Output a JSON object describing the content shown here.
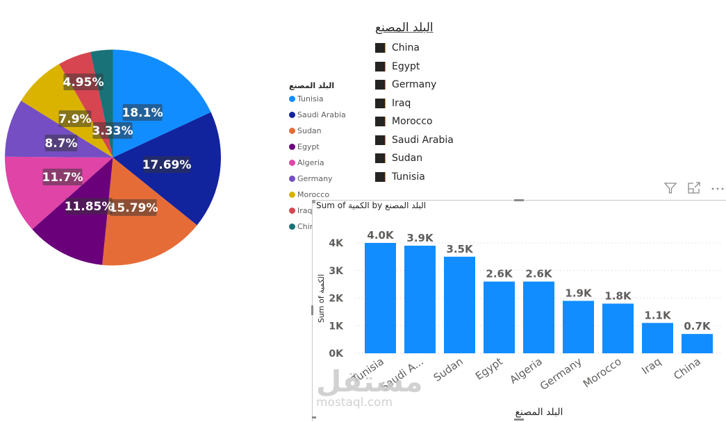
{
  "chart_data": [
    {
      "type": "pie",
      "title": "",
      "legend_title": "البلد المصنع",
      "legend_position": "right",
      "categories": [
        "Tunisia",
        "Saudi Arabia",
        "Sudan",
        "Egypt",
        "Algeria",
        "Germany",
        "Morocco",
        "Iraq",
        "China"
      ],
      "values": [
        18.1,
        17.69,
        15.79,
        11.85,
        11.7,
        8.7,
        7.9,
        4.95,
        3.33
      ],
      "labels": [
        "18.1%",
        "17.69%",
        "15.79%",
        "11.85%",
        "11.7%",
        "8.7%",
        "7.9%",
        "4.95%",
        "3.33%"
      ],
      "colors": [
        "#118DFF",
        "#12239E",
        "#E66C37",
        "#6B007B",
        "#E044A7",
        "#744EC2",
        "#D9B300",
        "#D64550",
        "#197278"
      ]
    },
    {
      "type": "bar",
      "title": "Sum of الكمية by البلد المصنع",
      "xlabel": "البلد المصنع",
      "ylabel": "Sum of الكمية",
      "categories": [
        "Tunisia",
        "Saudi A...",
        "Sudan",
        "Egypt",
        "Algeria",
        "Germany",
        "Morocco",
        "Iraq",
        "China"
      ],
      "values": [
        4000,
        3900,
        3500,
        2600,
        2600,
        1900,
        1800,
        1100,
        700
      ],
      "data_labels": [
        "4.0K",
        "3.9K",
        "3.5K",
        "2.6K",
        "2.6K",
        "1.9K",
        "1.8K",
        "1.1K",
        "0.7K"
      ],
      "yticks": [
        "0K",
        "1K",
        "2K",
        "3K",
        "4K"
      ],
      "ylim": [
        0,
        4000
      ],
      "grid": true,
      "color": "#118DFF"
    }
  ],
  "pie_legend": {
    "title": "البلد المصنع",
    "items": [
      "Tunisia",
      "Saudi Arabia",
      "Sudan",
      "Egypt",
      "Algeria",
      "Germany",
      "Morocco",
      "Iraq",
      "Chir"
    ]
  },
  "slicer": {
    "title": "البلد المصنع",
    "items": [
      "China",
      "Egypt",
      "Germany",
      "Iraq",
      "Morocco",
      "Saudi Arabia",
      "Sudan",
      "Tunisia"
    ]
  },
  "bar_visual": {
    "title": "Sum of الكمية by البلد المصنع",
    "header_icons": [
      "filter-icon",
      "focus-mode-icon",
      "more-options-icon"
    ]
  },
  "watermark": {
    "logo": "مستقل",
    "site": "mostaql.com"
  }
}
